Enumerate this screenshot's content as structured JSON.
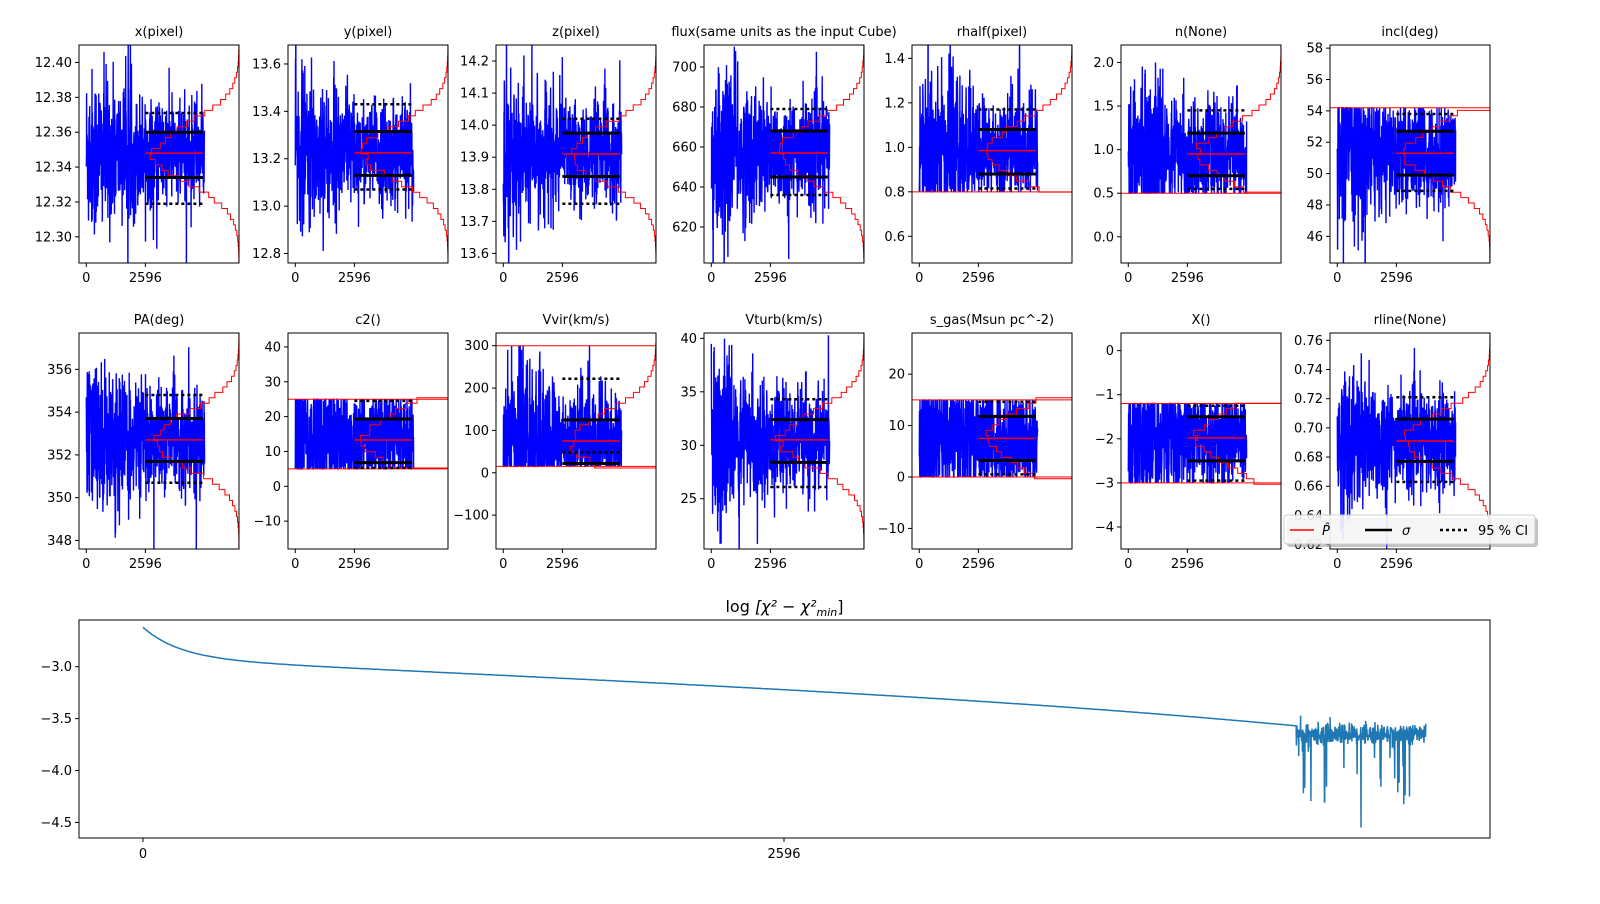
{
  "chart_data": {
    "type": "line",
    "description_title": "MCMC parameter traces",
    "x_tick_labels": [
      "0",
      "2596"
    ],
    "burn_in_step": 2596,
    "total_steps": 5200,
    "colors": {
      "trace": "#0000ff",
      "median": "#ff0000",
      "sigma": "#000000",
      "ci": "#000000",
      "chi2": "#1f77b4"
    },
    "panels": [
      {
        "title": "x(pixel)",
        "ylim": [
          12.285,
          12.41
        ],
        "yticks": [
          "12.30",
          "12.32",
          "12.34",
          "12.36",
          "12.38",
          "12.40"
        ],
        "median": 12.348,
        "sigma": [
          12.334,
          12.36
        ],
        "ci95": [
          12.319,
          12.371
        ],
        "bounds": []
      },
      {
        "title": "y(pixel)",
        "ylim": [
          12.76,
          13.68
        ],
        "yticks": [
          "12.8",
          "13.0",
          "13.2",
          "13.4",
          "13.6"
        ],
        "median": 13.225,
        "sigma": [
          13.13,
          13.315
        ],
        "ci95": [
          13.07,
          13.43
        ],
        "bounds": []
      },
      {
        "title": "z(pixel)",
        "ylim": [
          13.57,
          14.25
        ],
        "yticks": [
          "13.6",
          "13.7",
          "13.8",
          "13.9",
          "14.0",
          "14.1",
          "14.2"
        ],
        "median": 13.91,
        "sigma": [
          13.84,
          13.975
        ],
        "ci95": [
          13.755,
          14.02
        ],
        "bounds": []
      },
      {
        "title": "flux(same units as the input Cube)",
        "ylim": [
          602,
          711
        ],
        "yticks": [
          "620",
          "640",
          "660",
          "680",
          "700"
        ],
        "median": 657,
        "sigma": [
          645,
          668
        ],
        "ci95": [
          636,
          679
        ],
        "bounds": []
      },
      {
        "title": "rhalf(pixel)",
        "ylim": [
          0.48,
          1.46
        ],
        "yticks": [
          "0.6",
          "0.8",
          "1.0",
          "1.2",
          "1.4"
        ],
        "median": 0.985,
        "sigma": [
          0.88,
          1.08
        ],
        "ci95": [
          0.815,
          1.17
        ],
        "bounds": [
          0.8
        ]
      },
      {
        "title": "n(None)",
        "ylim": [
          -0.3,
          2.2
        ],
        "yticks": [
          "0.0",
          "0.5",
          "1.0",
          "1.5",
          "2.0"
        ],
        "median": 0.95,
        "sigma": [
          0.7,
          1.19
        ],
        "ci95": [
          0.55,
          1.45
        ],
        "bounds": [
          0.5
        ]
      },
      {
        "title": "incl(deg)",
        "ylim": [
          44.3,
          58.2
        ],
        "yticks": [
          "46",
          "48",
          "50",
          "52",
          "54",
          "56",
          "58"
        ],
        "median": 51.3,
        "sigma": [
          49.9,
          52.7
        ],
        "ci95": [
          48.9,
          53.8
        ],
        "bounds": [
          54.2
        ]
      },
      {
        "title": "PA(deg)",
        "ylim": [
          347.6,
          357.7
        ],
        "yticks": [
          "348",
          "350",
          "352",
          "354",
          "356"
        ],
        "median": 352.7,
        "sigma": [
          351.7,
          353.7
        ],
        "ci95": [
          350.7,
          354.8
        ],
        "bounds": []
      },
      {
        "title": "c2()",
        "ylim": [
          -18,
          44
        ],
        "yticks": [
          "−10",
          "0",
          "10",
          "20",
          "30",
          "40"
        ],
        "median": 13.3,
        "sigma": [
          6.8,
          19.3
        ],
        "ci95": [
          5.3,
          24.5
        ],
        "bounds": [
          5,
          25
        ]
      },
      {
        "title": "Vvir(km/s)",
        "ylim": [
          -180,
          330
        ],
        "yticks": [
          "−100",
          "0",
          "100",
          "200",
          "300"
        ],
        "median": 75,
        "sigma": [
          22,
          125
        ],
        "ci95": [
          48,
          222
        ],
        "bounds": [
          15,
          300
        ]
      },
      {
        "title": "Vturb(km/s)",
        "ylim": [
          20.3,
          40.5
        ],
        "yticks": [
          "25",
          "30",
          "35",
          "40"
        ],
        "median": 30.5,
        "sigma": [
          28.4,
          32.4
        ],
        "ci95": [
          26.1,
          34.3
        ],
        "bounds": []
      },
      {
        "title": "s_gas(Msun pc^-2)",
        "ylim": [
          -14,
          28
        ],
        "yticks": [
          "−10",
          "0",
          "10",
          "20"
        ],
        "median": 7.5,
        "sigma": [
          3.2,
          11.8
        ],
        "ci95": [
          0.5,
          14.6
        ],
        "bounds": [
          0,
          15
        ]
      },
      {
        "title": "X()",
        "ylim": [
          -4.5,
          0.4
        ],
        "yticks": [
          "−4",
          "−3",
          "−2",
          "−1",
          "0"
        ],
        "median": -1.98,
        "sigma": [
          -2.5,
          -1.5
        ],
        "ci95": [
          -2.95,
          -1.25
        ],
        "bounds": [
          -3,
          -1.2
        ]
      },
      {
        "title": "rline(None)",
        "ylim": [
          0.617,
          0.765
        ],
        "yticks": [
          "0.62",
          "0.64",
          "0.66",
          "0.68",
          "0.70",
          "0.72",
          "0.74",
          "0.76"
        ],
        "median": 0.691,
        "sigma": [
          0.677,
          0.706
        ],
        "ci95": [
          0.663,
          0.721
        ],
        "bounds": []
      }
    ],
    "legend": {
      "placement": "right of last panel",
      "entries": [
        "P̂",
        "σ",
        "95 % CI"
      ]
    },
    "chi2_panel": {
      "title_prefix": "log",
      "title_expr": "[χ² − χ²",
      "title_sub": "min",
      "title_suffix": "]",
      "ylim": [
        -4.65,
        -2.55
      ],
      "xlim": [
        -259,
        5455
      ],
      "yticks": [
        "−3.0",
        "−3.5",
        "−4.0",
        "−4.5"
      ],
      "ytick_values": [
        -3.0,
        -3.5,
        -4.0,
        -4.5
      ],
      "xticks": [
        "0",
        "2596"
      ],
      "xtick_values": [
        0,
        2596
      ],
      "curve_start": -2.62,
      "curve_knee": -3.57,
      "knee_step": 4670,
      "noise_end_step": 5195,
      "noise_level": -3.65,
      "min_value": -4.55
    }
  }
}
